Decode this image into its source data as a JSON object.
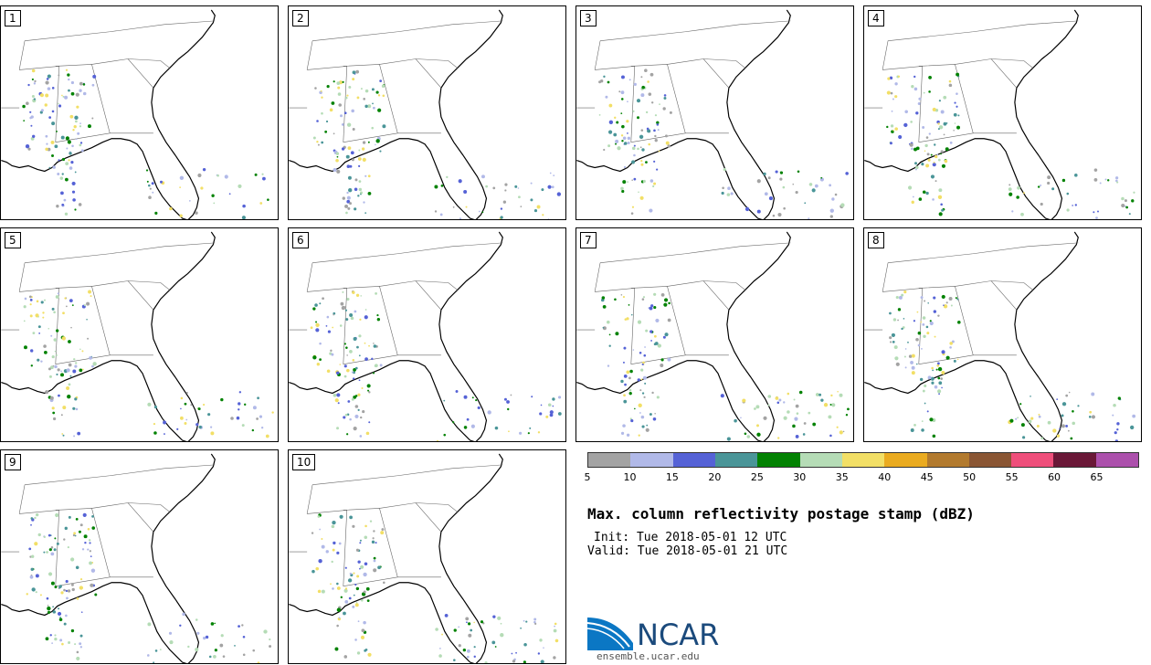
{
  "panels": [
    "1",
    "2",
    "3",
    "4",
    "5",
    "6",
    "7",
    "8",
    "9",
    "10"
  ],
  "colorbar": {
    "ticks": [
      "5",
      "10",
      "15",
      "20",
      "25",
      "30",
      "35",
      "40",
      "45",
      "50",
      "55",
      "60",
      "65"
    ],
    "colors": [
      "#a3a3a3",
      "#b1b9e8",
      "#5562d6",
      "#4a9598",
      "#038203",
      "#b5dcb6",
      "#f2df66",
      "#eaab20",
      "#b27a2e",
      "#8a5634",
      "#ef4f7b",
      "#6a1837",
      "#ac50ac"
    ]
  },
  "title": "Max. column reflectivity postage stamp (dBZ)",
  "init": "Init: Tue 2018-05-01 12 UTC",
  "valid": "Valid: Tue 2018-05-01 21 UTC",
  "logo": {
    "text": "NCAR",
    "url": "ensemble.ucar.edu"
  }
}
